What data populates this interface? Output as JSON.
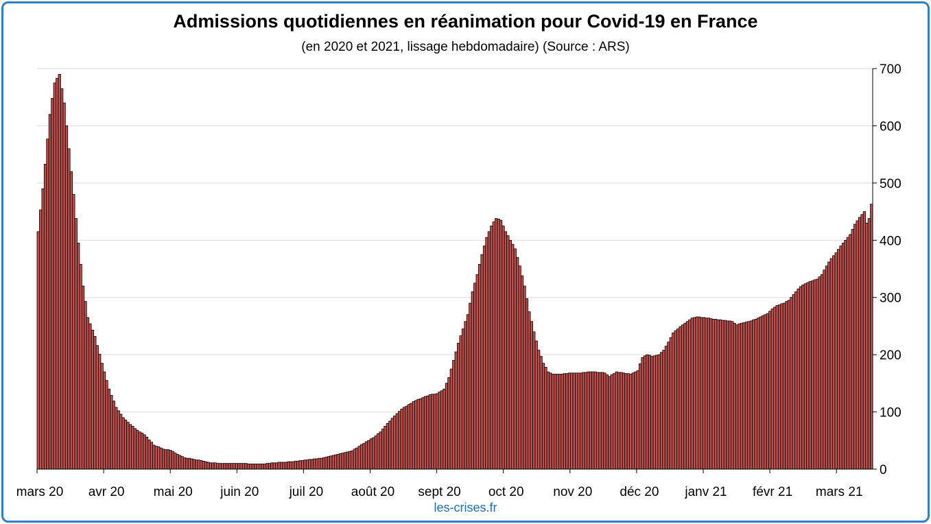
{
  "title": "Admissions quotidiennes en réanimation pour Covid-19 en France",
  "subtitle": "(en 2020 et 2021, lissage hebdomadaire) (Source : ARS)",
  "source": "les-crises.fr",
  "colors": {
    "bar_fill": "#c0504d",
    "bar_stroke": "#000000",
    "grid": "#d9d9d9",
    "border": "#2e7fc8",
    "source_text": "#1f6fb8"
  },
  "chart_data": {
    "type": "bar",
    "title": "Admissions quotidiennes en réanimation pour Covid-19 en France",
    "subtitle": "(en 2020 et 2021, lissage hebdomadaire) (Source : ARS)",
    "xlabel": "",
    "ylabel": "",
    "ylim": [
      0,
      700
    ],
    "yticks": [
      0,
      100,
      200,
      300,
      400,
      500,
      600,
      700
    ],
    "y_axis_side": "right",
    "grid": true,
    "legend": "none",
    "x_tick_labels": [
      "mars 20",
      "avr 20",
      "mai 20",
      "juin 20",
      "juil 20",
      "août 20",
      "sept 20",
      "oct 20",
      "nov 20",
      "déc 20",
      "janv 21",
      "févr 21",
      "mars 21"
    ],
    "keypoints": [
      [
        0,
        415
      ],
      [
        2,
        490
      ],
      [
        5,
        620
      ],
      [
        7,
        675
      ],
      [
        9,
        690
      ],
      [
        11,
        640
      ],
      [
        13,
        560
      ],
      [
        15,
        480
      ],
      [
        17,
        395
      ],
      [
        19,
        320
      ],
      [
        21,
        265
      ],
      [
        24,
        232
      ],
      [
        27,
        185
      ],
      [
        30,
        140
      ],
      [
        33,
        108
      ],
      [
        36,
        90
      ],
      [
        39,
        78
      ],
      [
        42,
        68
      ],
      [
        45,
        60
      ],
      [
        49,
        42
      ],
      [
        53,
        35
      ],
      [
        56,
        33
      ],
      [
        58,
        28
      ],
      [
        62,
        20
      ],
      [
        66,
        17
      ],
      [
        70,
        14
      ],
      [
        73,
        11
      ],
      [
        77,
        10
      ],
      [
        85,
        10
      ],
      [
        92,
        9
      ],
      [
        96,
        9
      ],
      [
        100,
        11
      ],
      [
        104,
        12
      ],
      [
        108,
        13
      ],
      [
        112,
        15
      ],
      [
        116,
        17
      ],
      [
        121,
        20
      ],
      [
        125,
        24
      ],
      [
        129,
        28
      ],
      [
        133,
        32
      ],
      [
        136,
        40
      ],
      [
        139,
        48
      ],
      [
        142,
        55
      ],
      [
        145,
        65
      ],
      [
        148,
        80
      ],
      [
        151,
        93
      ],
      [
        154,
        105
      ],
      [
        157,
        113
      ],
      [
        160,
        120
      ],
      [
        163,
        125
      ],
      [
        166,
        130
      ],
      [
        169,
        132
      ],
      [
        172,
        140
      ],
      [
        174,
        160
      ],
      [
        176,
        190
      ],
      [
        178,
        220
      ],
      [
        180,
        245
      ],
      [
        182,
        270
      ],
      [
        184,
        310
      ],
      [
        186,
        340
      ],
      [
        188,
        375
      ],
      [
        190,
        405
      ],
      [
        192,
        425
      ],
      [
        194,
        438
      ],
      [
        196,
        435
      ],
      [
        198,
        415
      ],
      [
        200,
        400
      ],
      [
        202,
        385
      ],
      [
        204,
        355
      ],
      [
        206,
        320
      ],
      [
        208,
        275
      ],
      [
        210,
        240
      ],
      [
        212,
        208
      ],
      [
        214,
        185
      ],
      [
        216,
        170
      ],
      [
        218,
        166
      ],
      [
        222,
        166
      ],
      [
        226,
        168
      ],
      [
        230,
        168
      ],
      [
        234,
        170
      ],
      [
        238,
        169
      ],
      [
        240,
        168
      ],
      [
        242,
        162
      ],
      [
        245,
        170
      ],
      [
        248,
        168
      ],
      [
        251,
        166
      ],
      [
        254,
        172
      ],
      [
        256,
        195
      ],
      [
        258,
        200
      ],
      [
        260,
        197
      ],
      [
        263,
        200
      ],
      [
        265,
        208
      ],
      [
        267,
        222
      ],
      [
        269,
        238
      ],
      [
        271,
        245
      ],
      [
        273,
        252
      ],
      [
        275,
        258
      ],
      [
        277,
        264
      ],
      [
        279,
        266
      ],
      [
        282,
        265
      ],
      [
        286,
        262
      ],
      [
        290,
        260
      ],
      [
        294,
        258
      ],
      [
        296,
        252
      ],
      [
        298,
        255
      ],
      [
        301,
        258
      ],
      [
        304,
        262
      ],
      [
        307,
        268
      ],
      [
        309,
        272
      ],
      [
        311,
        280
      ],
      [
        313,
        286
      ],
      [
        316,
        290
      ],
      [
        318,
        295
      ],
      [
        320,
        305
      ],
      [
        322,
        315
      ],
      [
        324,
        322
      ],
      [
        327,
        328
      ],
      [
        330,
        332
      ],
      [
        332,
        340
      ],
      [
        334,
        355
      ],
      [
        336,
        368
      ],
      [
        338,
        378
      ],
      [
        340,
        390
      ],
      [
        342,
        400
      ],
      [
        344,
        410
      ],
      [
        346,
        428
      ],
      [
        348,
        440
      ],
      [
        350,
        450
      ],
      [
        351,
        430
      ],
      [
        352,
        438
      ],
      [
        353,
        463
      ]
    ]
  }
}
